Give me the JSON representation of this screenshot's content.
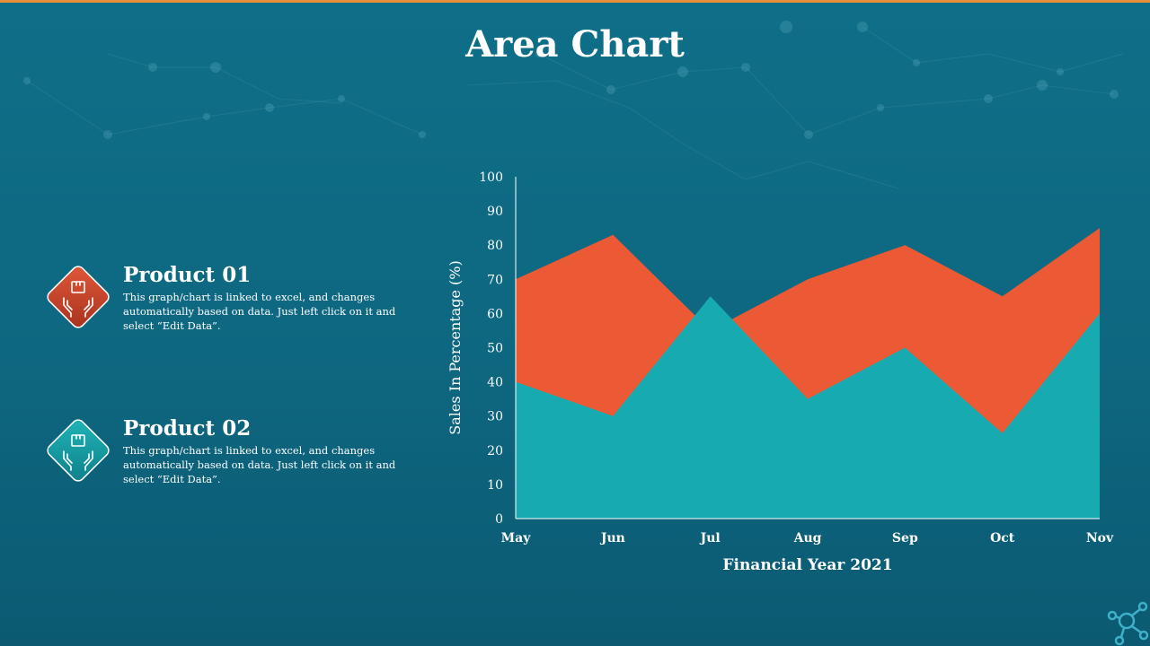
{
  "slide": {
    "title": "Area Chart"
  },
  "products": [
    {
      "name": "Product 01",
      "description": "This graph/chart  is linked to excel, and changes automatically based on data. Just left click on it and select “Edit Data”.",
      "icon": "hands-holding-box-icon",
      "color": "#c9432b"
    },
    {
      "name": "Product 02",
      "description": "This graph/chart  is linked to excel, and changes automatically based on data. Just left click on it and select “Edit Data”.",
      "icon": "hands-holding-box-icon",
      "color": "#17a3a8"
    }
  ],
  "chart_data": {
    "type": "area",
    "categories": [
      "May",
      "Jun",
      "Jul",
      "Aug",
      "Sep",
      "Oct",
      "Nov"
    ],
    "series": [
      {
        "values": [
          70,
          83,
          55,
          70,
          80,
          65,
          85
        ],
        "color": "#ec5a35"
      },
      {
        "values": [
          40,
          30,
          65,
          35,
          50,
          25,
          60
        ],
        "color": "#17abb1"
      }
    ],
    "xlabel": "Financial Year 2021",
    "ylabel": "Sales In Percentage (%)",
    "ylim": [
      0,
      100
    ],
    "yticks": [
      0,
      10,
      20,
      30,
      40,
      50,
      60,
      70,
      80,
      90,
      100
    ],
    "grid": false,
    "legend": "none"
  }
}
